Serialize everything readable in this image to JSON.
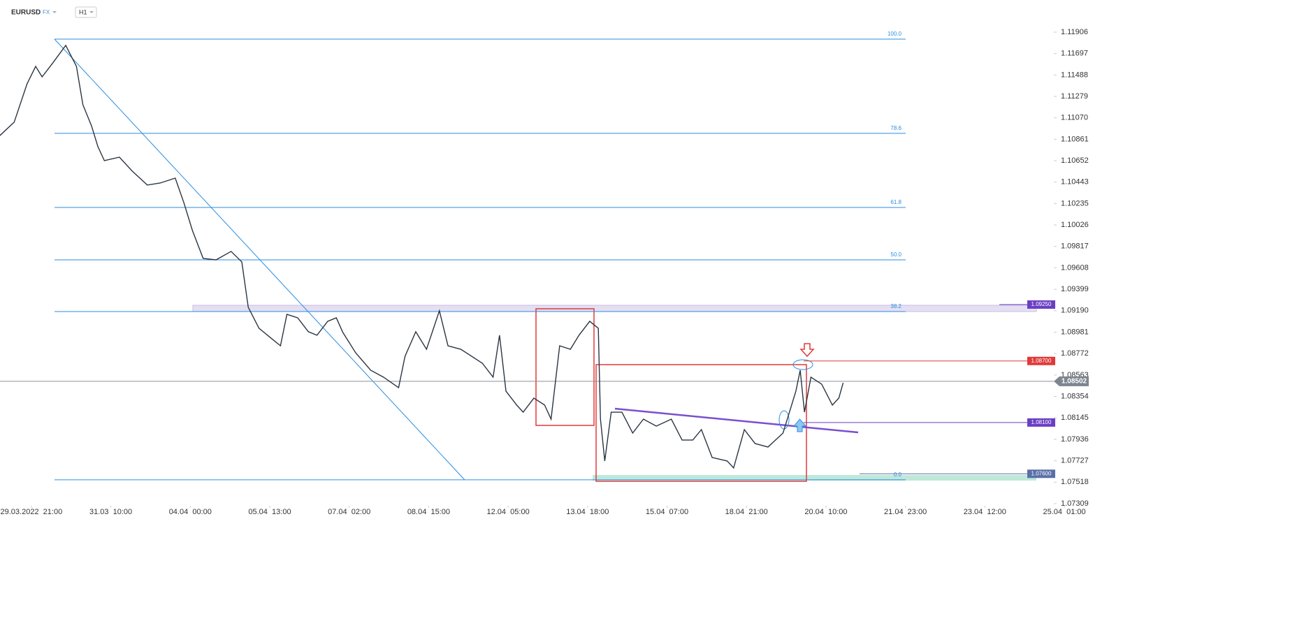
{
  "header": {
    "symbol": "EURUSD",
    "market": "FX",
    "interval": "H1"
  },
  "chart_data": {
    "type": "line",
    "color": "#2a3542",
    "x": [
      -15,
      -8,
      -2,
      2,
      5,
      10,
      16,
      21,
      24,
      28,
      31,
      34,
      41,
      47,
      54,
      60,
      67,
      71,
      75,
      80,
      86,
      93,
      98,
      101,
      106,
      112,
      116,
      119,
      124,
      129,
      133,
      138,
      142,
      145,
      151,
      158,
      164,
      171,
      174,
      179,
      184,
      190,
      194,
      200,
      210,
      215,
      218,
      221,
      226,
      229,
      234,
      239,
      242,
      246,
      251,
      255,
      260,
      264,
      265,
      267,
      270,
      275,
      280,
      285,
      291,
      298,
      303,
      308,
      312,
      317,
      324,
      327,
      332,
      337,
      343,
      350,
      356,
      358,
      360,
      363,
      368,
      373,
      376,
      378
    ],
    "values": [
      1.10891,
      1.11028,
      1.11402,
      1.11572,
      1.1147,
      1.11606,
      1.11777,
      1.11572,
      1.11198,
      1.10993,
      1.10789,
      1.10653,
      1.10687,
      1.10551,
      1.10415,
      1.10435,
      1.10483,
      1.10244,
      1.09972,
      1.097,
      1.09686,
      1.09768,
      1.09666,
      1.09223,
      1.09019,
      1.08916,
      1.08848,
      1.09155,
      1.09121,
      1.08985,
      1.08951,
      1.09087,
      1.09121,
      1.0898,
      1.0878,
      1.0861,
      1.08542,
      1.0844,
      1.08746,
      1.08985,
      1.08814,
      1.09189,
      1.08848,
      1.08814,
      1.08678,
      1.08542,
      1.08951,
      1.08406,
      1.0827,
      1.08201,
      1.08338,
      1.0827,
      1.08133,
      1.08848,
      1.08814,
      1.08951,
      1.09087,
      1.09019,
      1.08133,
      1.07725,
      1.08201,
      1.08201,
      1.07997,
      1.08133,
      1.08065,
      1.08133,
      1.07929,
      1.07929,
      1.08031,
      1.07759,
      1.07725,
      1.07657,
      1.08031,
      1.07895,
      1.07861,
      1.07997,
      1.08406,
      1.0861,
      1.08201,
      1.08542,
      1.08474,
      1.0827,
      1.08338,
      1.08487
    ],
    "xlim": [
      -14.6,
      473.5
    ],
    "xticks": [
      {
        "value": 0,
        "label": "29.03.2022  21:00"
      },
      {
        "value": 37,
        "label": "31.03  10:00"
      },
      {
        "value": 74,
        "label": "04.04  00:00"
      },
      {
        "value": 111,
        "label": "05.04  13:00"
      },
      {
        "value": 148,
        "label": "07.04  02:00"
      },
      {
        "value": 185,
        "label": "08.04  15:00"
      },
      {
        "value": 222,
        "label": "12.04  05:00"
      },
      {
        "value": 259,
        "label": "13.04  18:00"
      },
      {
        "value": 296,
        "label": "15.04  07:00"
      },
      {
        "value": 333,
        "label": "18.04  21:00"
      },
      {
        "value": 370,
        "label": "20.04  10:00"
      },
      {
        "value": 407,
        "label": "21.04  23:00"
      },
      {
        "value": 444,
        "label": "23.04  12:00"
      },
      {
        "value": 481,
        "label": "25.04  01:00"
      }
    ],
    "ylim": [
      1.07309,
      1.11906
    ],
    "yticks": [
      1.11906,
      1.11697,
      1.11488,
      1.11279,
      {
        "value": 1.1107,
        "label": "1.11070"
      },
      1.10861,
      1.10652,
      1.10443,
      1.10235,
      1.10026,
      1.09817,
      1.09608,
      1.09399,
      {
        "value": 1.0919,
        "label": "1.09190"
      },
      1.08981,
      1.08772,
      1.08563,
      1.08354,
      1.08145,
      1.07936,
      1.07727,
      1.07518,
      1.07309
    ],
    "fib_levels": [
      {
        "label": "100.0",
        "value": 1.11838
      },
      {
        "label": "78.6",
        "value": 1.10919
      },
      {
        "label": "61.8",
        "value": 1.10197
      },
      {
        "label": "50.0",
        "value": 1.09686
      },
      {
        "label": "38.2",
        "value": 1.09182
      },
      {
        "label": "0.0",
        "value": 1.07541
      }
    ],
    "price_levels": [
      {
        "value": 1.0925,
        "label": "1.09250",
        "color": "#6a3fc4"
      },
      {
        "value": 1.087,
        "label": "1.08700",
        "color": "#e03a3a"
      },
      {
        "value": 1.081,
        "label": "1.08100",
        "color": "#6a3fc4"
      },
      {
        "value": 1.076,
        "label": "1.07600",
        "color": "#5a6fa8"
      }
    ],
    "current_price": {
      "value": 1.08502,
      "label": "1.08502",
      "color": "#7d8690"
    }
  }
}
